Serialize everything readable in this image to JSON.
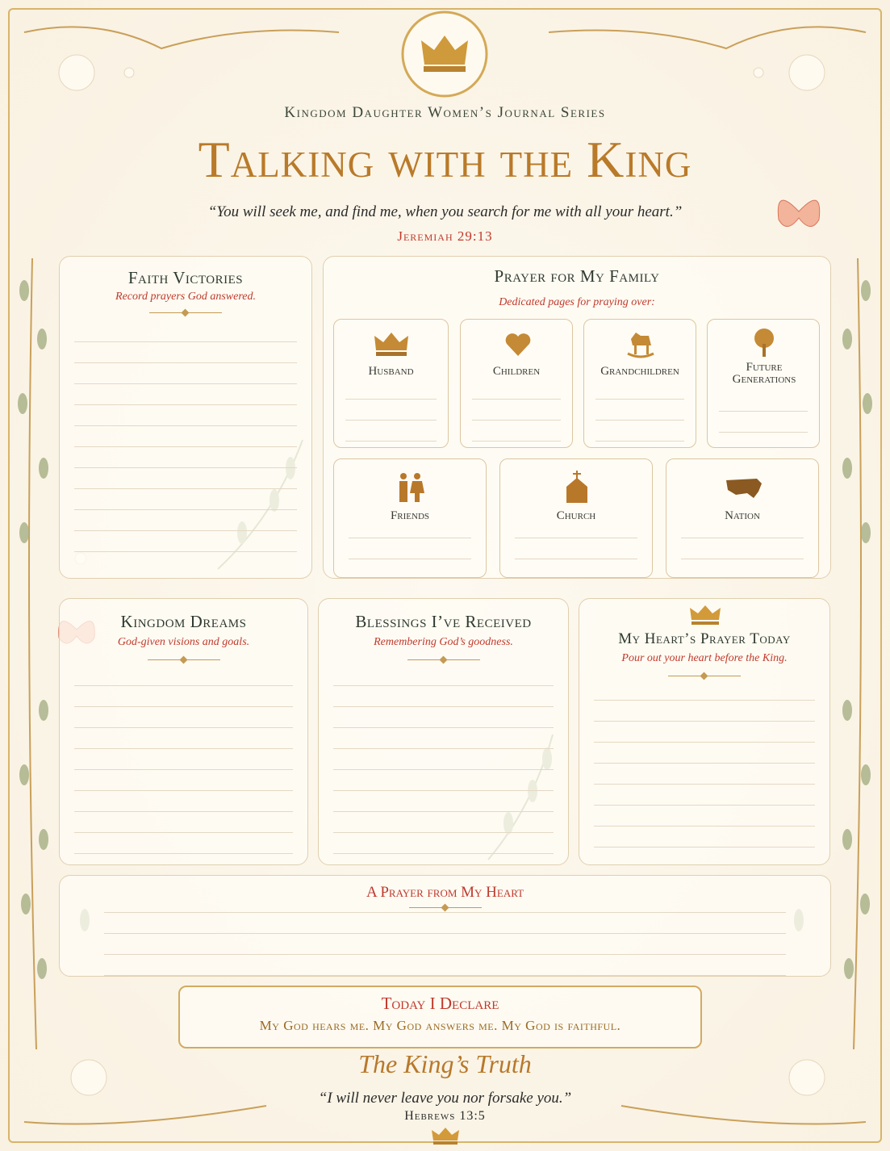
{
  "header": {
    "series": "Kingdom Daughter Women’s Journal Series",
    "title": "Talking with the King",
    "verse": "“You will seek me, and find me, when you search for me with all your heart.”",
    "reference": "Jeremiah 29:13"
  },
  "faith_victories": {
    "title": "Faith Victories",
    "subtitle": "Record prayers God answered."
  },
  "family": {
    "title": "Prayer for My Family",
    "subtitle": "Dedicated pages for praying over:",
    "members": [
      "Husband",
      "Children",
      "Grandchildren",
      "Future Generations",
      "Friends",
      "Church",
      "Nation"
    ]
  },
  "kingdom_dreams": {
    "title": "Kingdom Dreams",
    "subtitle": "God-given visions and goals."
  },
  "blessings": {
    "title": "Blessings I’ve Received",
    "subtitle": "Remembering God’s goodness."
  },
  "hearts_prayer": {
    "title": "My Heart’s Prayer Today",
    "subtitle": "Pour out your heart before the King."
  },
  "prayer_from_heart": {
    "title": "A Prayer from My Heart"
  },
  "declaration": {
    "title": "Today I Declare",
    "text": "My God hears me. My God answers me. My God is faithful."
  },
  "kings_truth": {
    "title": "The King’s Truth",
    "verse": "“I will never leave you nor forsake you.”",
    "reference": "Hebrews 13:5"
  }
}
